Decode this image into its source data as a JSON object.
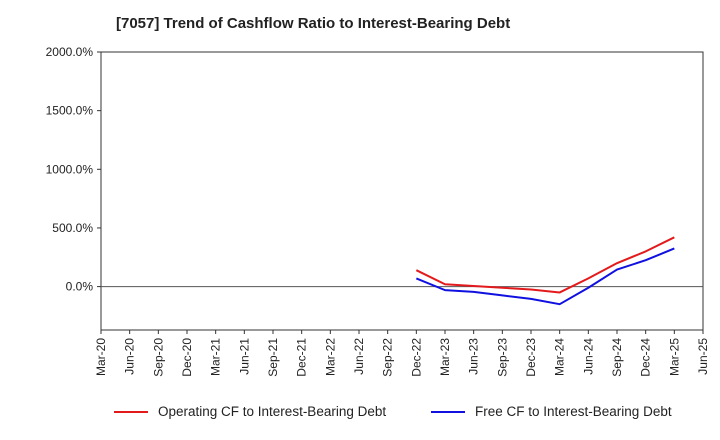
{
  "title": "[7057]  Trend of Cashflow Ratio to Interest-Bearing Debt",
  "chart_data": {
    "type": "line",
    "title": "[7057]  Trend of Cashflow Ratio to Interest-Bearing Debt",
    "xlabel": "",
    "ylabel": "",
    "x": [
      "Mar-20",
      "Jun-20",
      "Sep-20",
      "Dec-20",
      "Mar-21",
      "Jun-21",
      "Sep-21",
      "Dec-21",
      "Mar-22",
      "Jun-22",
      "Sep-22",
      "Dec-22",
      "Mar-23",
      "Jun-23",
      "Sep-23",
      "Dec-23",
      "Mar-24",
      "Jun-24",
      "Sep-24",
      "Dec-24",
      "Mar-25",
      "Jun-25"
    ],
    "y_ticks": [
      0,
      500,
      1000,
      1500,
      2000
    ],
    "y_tick_labels": [
      "0.0%",
      "500.0%",
      "1000.0%",
      "1500.0%",
      "2000.0%"
    ],
    "ylim": [
      -370,
      2000
    ],
    "grid": true,
    "legend_position": "bottom",
    "series": [
      {
        "name": "Operating CF to Interest-Bearing Debt",
        "color": "#e31a1c",
        "values": [
          null,
          null,
          null,
          null,
          null,
          null,
          null,
          null,
          null,
          null,
          null,
          140,
          20,
          5,
          -10,
          -25,
          -50,
          70,
          200,
          300,
          420,
          null
        ]
      },
      {
        "name": "Free CF to Interest-Bearing Debt",
        "color": "#1010e0",
        "values": [
          null,
          null,
          null,
          null,
          null,
          null,
          null,
          null,
          null,
          null,
          null,
          70,
          -30,
          -45,
          -75,
          -105,
          -150,
          -10,
          145,
          225,
          325,
          null
        ]
      }
    ]
  }
}
